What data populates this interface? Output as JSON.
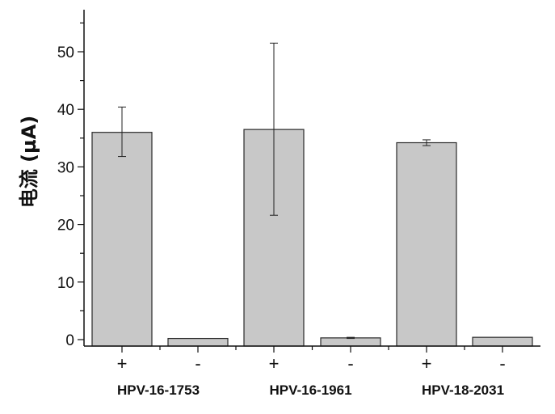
{
  "chart_data": {
    "type": "bar",
    "ylabel": "电流 (µA)",
    "ylim": [
      -1.5,
      57
    ],
    "yticks": [
      0,
      10,
      20,
      30,
      40,
      50
    ],
    "grid": false,
    "bar_color": "#c8c8c8",
    "groups": [
      "HPV-16-1753",
      "HPV-16-1961",
      "HPV-18-2031"
    ],
    "categories": [
      "+",
      "-",
      "+",
      "-",
      "+",
      "-"
    ],
    "values": [
      36.0,
      0.2,
      36.5,
      0.3,
      34.2,
      0.4
    ],
    "errors": [
      [
        31.8,
        40.4
      ],
      [
        0.2,
        0.2
      ],
      [
        21.6,
        51.5
      ],
      [
        0.2,
        0.4
      ],
      [
        33.7,
        34.7
      ],
      [
        0.4,
        0.4
      ]
    ]
  }
}
